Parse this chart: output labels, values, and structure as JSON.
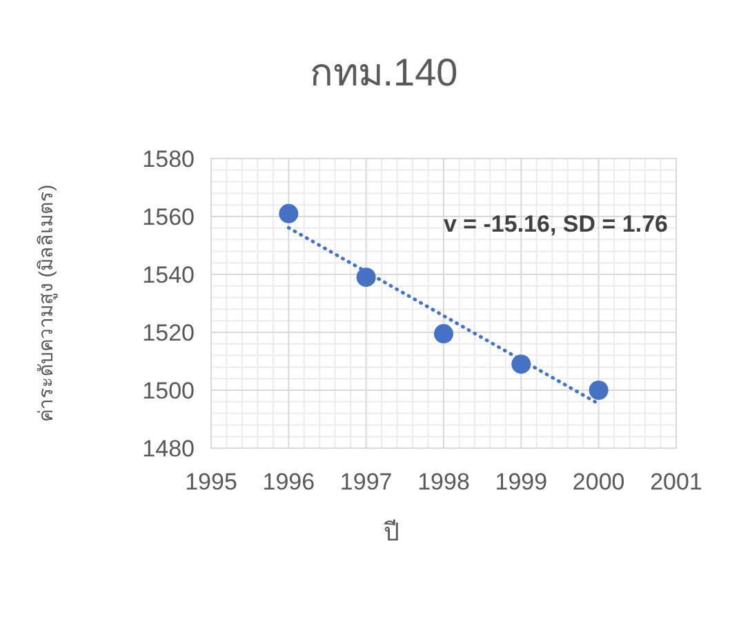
{
  "chart_data": {
    "type": "scatter",
    "title": "กทม.140",
    "xlabel": "ปี",
    "ylabel": "ค่าระดับความสูง (มิลลิเมตร)",
    "x": [
      1996,
      1997,
      1998,
      1999,
      2000
    ],
    "series": [
      {
        "color": "#4472c4",
        "marker": "circle",
        "values": [
          1561,
          1539,
          1519.5,
          1509,
          1500
        ]
      },
      {
        "type": "line",
        "color": "#4472c4",
        "line_style": "dotted",
        "marker": "none",
        "x": [
          1996,
          2000
        ],
        "values": [
          1556.1,
          1495.3
        ]
      }
    ],
    "annotations": [
      "v = -15.16, SD = 1.76"
    ],
    "xlim": [
      1995,
      2001
    ],
    "xticks": [
      1995,
      1996,
      1997,
      1998,
      1999,
      2000,
      2001
    ],
    "ylim": [
      1480,
      1580
    ],
    "yticks": [
      1480,
      1500,
      1520,
      1540,
      1560,
      1580
    ],
    "grid": true
  }
}
